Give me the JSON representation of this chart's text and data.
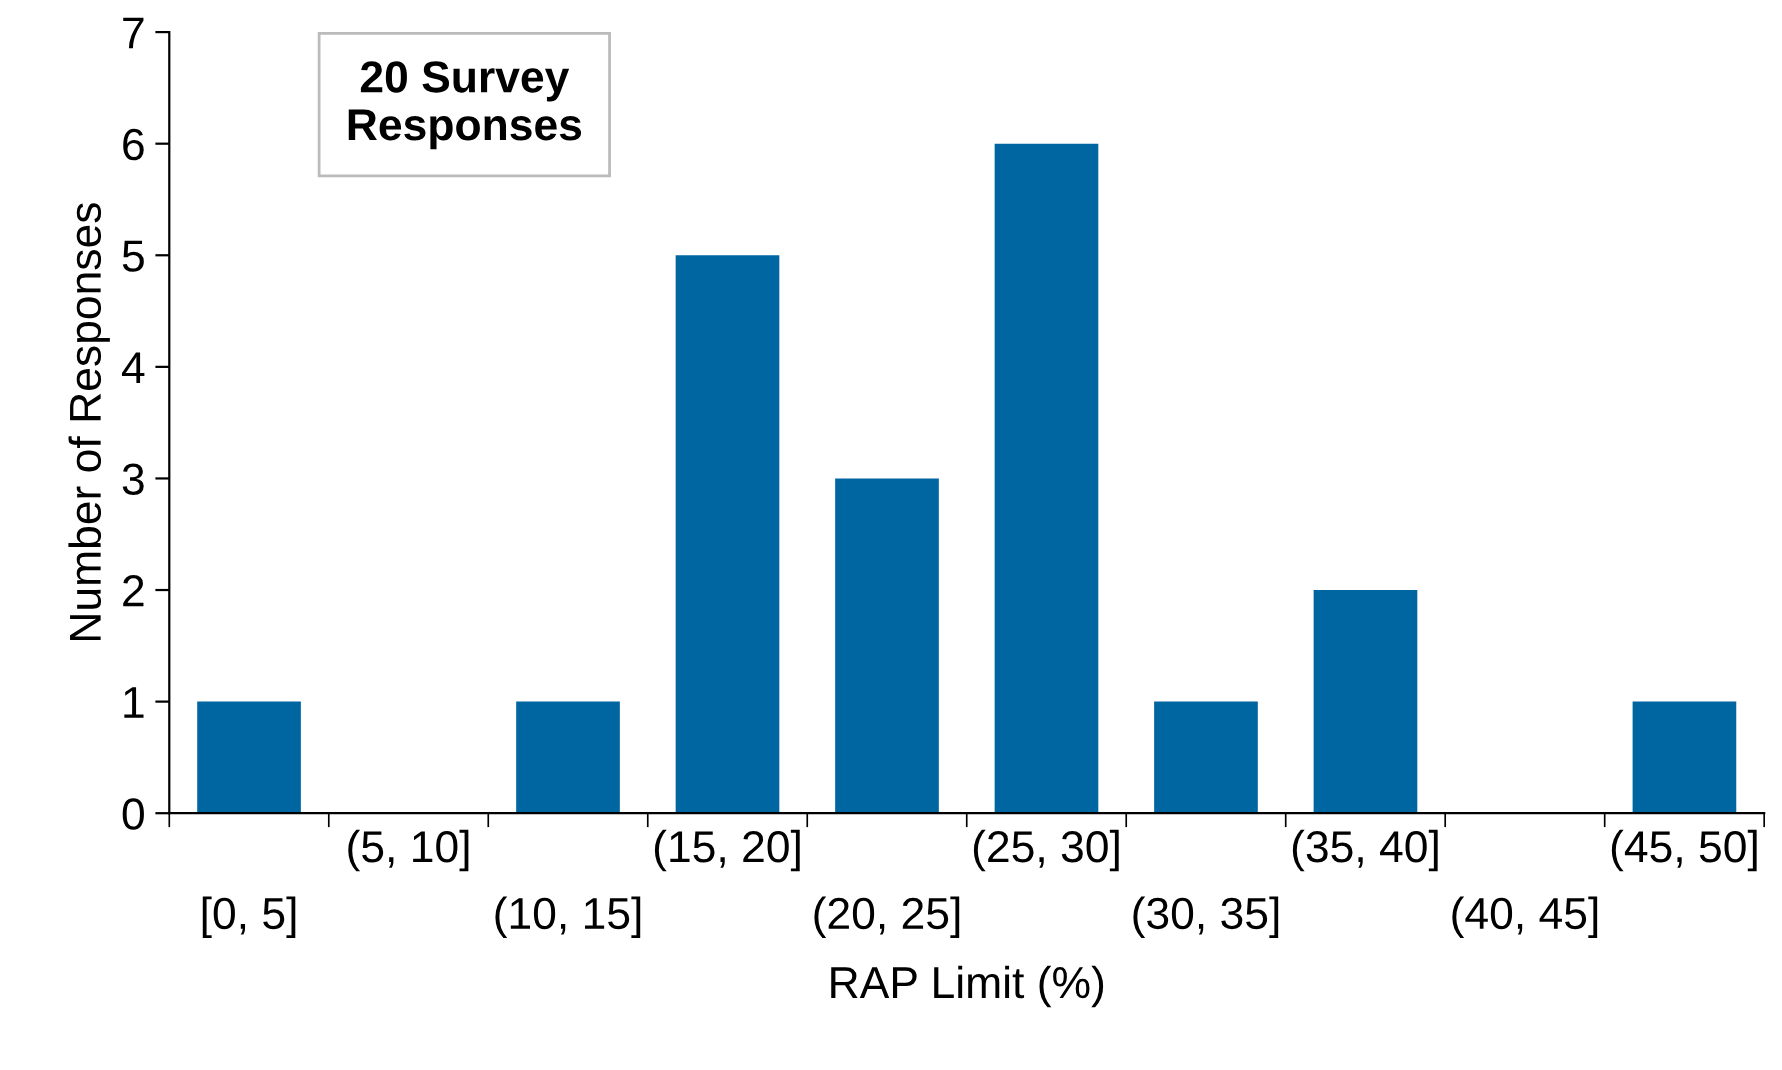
{
  "chart_data": {
    "type": "bar",
    "xlabel": "RAP Limit (%)",
    "ylabel": "Number of Responses",
    "categories": [
      "[0, 5]",
      "(5, 10]",
      "(10, 15]",
      "(15, 20]",
      "(20, 25]",
      "(25, 30]",
      "(30, 35]",
      "(35, 40]",
      "(40, 45]",
      "(45, 50]"
    ],
    "values": [
      1,
      0,
      1,
      5,
      3,
      6,
      1,
      2,
      0,
      1
    ],
    "color": "#0066a1",
    "ylim": [
      0,
      7
    ],
    "yticks": [
      0,
      1,
      2,
      3,
      4,
      5,
      6,
      7
    ],
    "annotations": [
      "20 Survey\nResponses"
    ]
  }
}
